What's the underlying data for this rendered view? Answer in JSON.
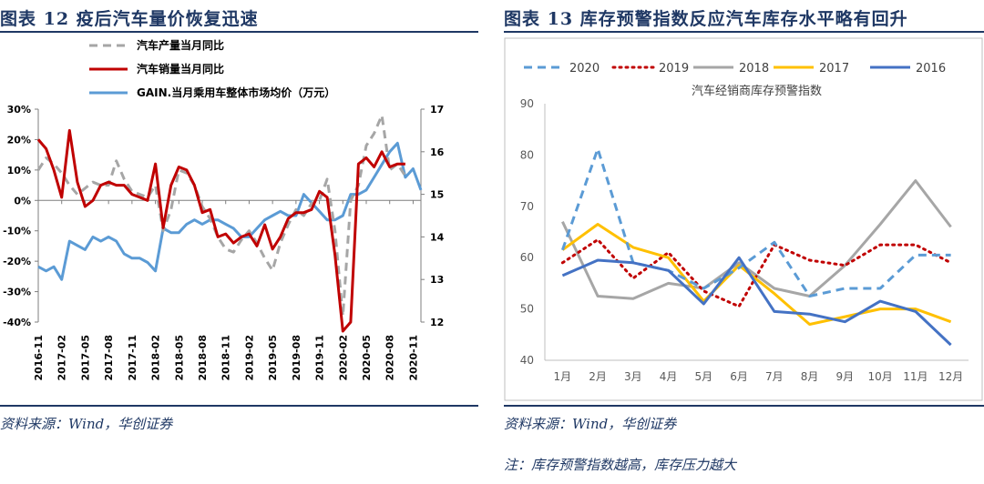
{
  "left": {
    "title": "图表 12   疫后汽车量价恢复迅速",
    "source": "资料来源：Wind，华创证券",
    "chart_data": {
      "type": "line",
      "left_axis": {
        "ticks": [
          "30%",
          "20%",
          "10%",
          "0%",
          "-10%",
          "-20%",
          "-30%",
          "-40%"
        ],
        "ylim": [
          -40,
          30
        ]
      },
      "right_axis": {
        "ticks": [
          "17",
          "16",
          "15",
          "14",
          "13",
          "12"
        ],
        "ylim": [
          12,
          17
        ]
      },
      "x_tick_labels": [
        "2016-11",
        "2017-02",
        "2017-05",
        "2017-08",
        "2017-11",
        "2018-02",
        "2018-05",
        "2018-08",
        "2018-11",
        "2019-02",
        "2019-05",
        "2019-08",
        "2019-11",
        "2020-02",
        "2020-05",
        "2020-08",
        "2020-11"
      ],
      "x_start": "2016-11",
      "x_end": "2020-12",
      "grid": false,
      "legend_position": "top",
      "series": [
        {
          "name": "汽车产量当月同比",
          "axis": "left",
          "style": "dashed",
          "color": "#a6a6a6",
          "values": [
            10,
            14,
            12,
            9,
            5,
            2,
            4,
            6,
            5,
            5,
            13,
            7,
            3,
            2,
            1,
            5,
            -10,
            -3,
            10,
            9,
            5,
            -2,
            -6,
            -12,
            -16,
            -17,
            -13,
            -10,
            -14,
            -19,
            -23,
            -14,
            -8,
            -3,
            -5,
            -1,
            0,
            7,
            -10,
            -38,
            0,
            5,
            18,
            22,
            28,
            10,
            12,
            8
          ]
        },
        {
          "name": "汽车销量当月同比",
          "axis": "left",
          "style": "solid",
          "color": "#c00000",
          "values": [
            20,
            17,
            10,
            1,
            23,
            6,
            -2,
            0,
            5,
            6,
            5,
            5,
            2,
            1,
            0,
            12,
            -9,
            5,
            11,
            10,
            5,
            -4,
            -3,
            -12,
            -11,
            -14,
            -12,
            -11,
            -15,
            -8,
            -16,
            -12,
            -6,
            -4,
            -4,
            -3,
            3,
            1,
            -18,
            -43,
            -40,
            12,
            14,
            11,
            16,
            11,
            12,
            12
          ]
        },
        {
          "name": "GAIN.当月乘用车整体市场均价（万元）",
          "axis": "right",
          "style": "solid",
          "color": "#5b9bd5",
          "values": [
            13.3,
            13.2,
            13.3,
            13.0,
            13.9,
            13.8,
            13.7,
            14.0,
            13.9,
            14.0,
            13.9,
            13.6,
            13.5,
            13.5,
            13.4,
            13.2,
            14.2,
            14.1,
            14.1,
            14.3,
            14.4,
            14.3,
            14.4,
            14.4,
            14.3,
            14.2,
            14.0,
            14.0,
            14.2,
            14.4,
            14.5,
            14.6,
            14.5,
            14.5,
            15.0,
            14.8,
            14.6,
            14.4,
            14.4,
            14.5,
            15.0,
            15.0,
            15.1,
            15.4,
            15.7,
            16.0,
            16.2,
            15.4,
            15.6,
            15.1
          ]
        }
      ]
    }
  },
  "right": {
    "title": "图表 13   库存预警指数反应汽车库存水平略有回升",
    "source": "资料来源：Wind，华创证券",
    "note": "注：库存预警指数越高，库存压力越大",
    "chart_data": {
      "type": "line",
      "title": "汽车经销商库存预警指数",
      "categories": [
        "1月",
        "2月",
        "3月",
        "4月",
        "5月",
        "6月",
        "7月",
        "8月",
        "9月",
        "10月",
        "11月",
        "12月"
      ],
      "ylim": [
        40,
        90
      ],
      "y_ticks": [
        "90",
        "80",
        "70",
        "60",
        "50",
        "40"
      ],
      "grid": false,
      "legend_position": "top",
      "series": [
        {
          "name": "2020",
          "style": "dashed",
          "color": "#5b9bd5",
          "values": [
            61.5,
            81.2,
            59.0,
            57.5,
            54.0,
            58.0,
            63.0,
            52.5,
            54.0,
            54.0,
            60.5,
            60.5
          ]
        },
        {
          "name": "2019",
          "style": "dotted",
          "color": "#c00000",
          "values": [
            59.0,
            63.5,
            56.0,
            61.0,
            53.5,
            50.5,
            62.5,
            59.5,
            58.5,
            62.5,
            62.5,
            59.0
          ]
        },
        {
          "name": "2018",
          "style": "solid",
          "color": "#a6a6a6",
          "values": [
            67.0,
            52.5,
            52.0,
            55.0,
            54.0,
            59.0,
            54.0,
            52.5,
            58.5,
            66.5,
            75.0,
            66.0
          ]
        },
        {
          "name": "2017",
          "style": "solid",
          "color": "#ffc000",
          "values": [
            61.5,
            66.5,
            62.0,
            60.0,
            51.5,
            58.5,
            53.0,
            47.0,
            48.5,
            50.0,
            50.0,
            47.5
          ]
        },
        {
          "name": "2016",
          "style": "solid",
          "color": "#4472c4",
          "values": [
            56.5,
            59.5,
            59.0,
            57.5,
            51.0,
            60.0,
            49.5,
            49.0,
            47.5,
            51.5,
            49.5,
            43.0
          ]
        }
      ]
    }
  }
}
